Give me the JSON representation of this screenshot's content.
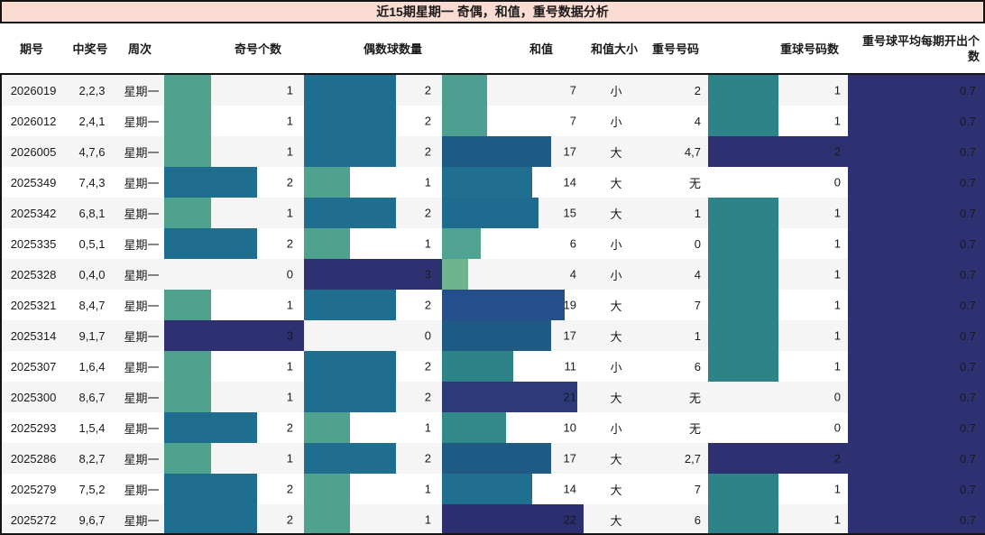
{
  "chart_data": {
    "type": "table",
    "title": "近15期星期一 奇偶，和值，重号数据分析",
    "title_bg": "#fbdcd3",
    "columns": [
      "期号",
      "中奖号",
      "周次",
      "奇号个数",
      "偶数球数量",
      "和值",
      "和值大小",
      "重号号码",
      "重球号码数",
      "重号球平均每期开出个数"
    ],
    "rows": [
      {
        "period": "2026019",
        "numbers": "2,2,3",
        "week": "星期一",
        "odd": 1,
        "even": 2,
        "sum": 7,
        "size": "小",
        "repeat": "2",
        "repeat_count": 1,
        "avg": "0.7"
      },
      {
        "period": "2026012",
        "numbers": "2,4,1",
        "week": "星期一",
        "odd": 1,
        "even": 2,
        "sum": 7,
        "size": "小",
        "repeat": "4",
        "repeat_count": 1,
        "avg": "0.7"
      },
      {
        "period": "2026005",
        "numbers": "4,7,6",
        "week": "星期一",
        "odd": 1,
        "even": 2,
        "sum": 17,
        "size": "大",
        "repeat": "4,7",
        "repeat_count": 2,
        "avg": "0.7"
      },
      {
        "period": "2025349",
        "numbers": "7,4,3",
        "week": "星期一",
        "odd": 2,
        "even": 1,
        "sum": 14,
        "size": "大",
        "repeat": "无",
        "repeat_count": 0,
        "avg": "0.7"
      },
      {
        "period": "2025342",
        "numbers": "6,8,1",
        "week": "星期一",
        "odd": 1,
        "even": 2,
        "sum": 15,
        "size": "大",
        "repeat": "1",
        "repeat_count": 1,
        "avg": "0.7"
      },
      {
        "period": "2025335",
        "numbers": "0,5,1",
        "week": "星期一",
        "odd": 2,
        "even": 1,
        "sum": 6,
        "size": "小",
        "repeat": "0",
        "repeat_count": 1,
        "avg": "0.7"
      },
      {
        "period": "2025328",
        "numbers": "0,4,0",
        "week": "星期一",
        "odd": 0,
        "even": 3,
        "sum": 4,
        "size": "小",
        "repeat": "4",
        "repeat_count": 1,
        "avg": "0.7"
      },
      {
        "period": "2025321",
        "numbers": "8,4,7",
        "week": "星期一",
        "odd": 1,
        "even": 2,
        "sum": 19,
        "size": "大",
        "repeat": "7",
        "repeat_count": 1,
        "avg": "0.7"
      },
      {
        "period": "2025314",
        "numbers": "9,1,7",
        "week": "星期一",
        "odd": 3,
        "even": 0,
        "sum": 17,
        "size": "大",
        "repeat": "1",
        "repeat_count": 1,
        "avg": "0.7"
      },
      {
        "period": "2025307",
        "numbers": "1,6,4",
        "week": "星期一",
        "odd": 1,
        "even": 2,
        "sum": 11,
        "size": "小",
        "repeat": "6",
        "repeat_count": 1,
        "avg": "0.7"
      },
      {
        "period": "2025300",
        "numbers": "8,6,7",
        "week": "星期一",
        "odd": 1,
        "even": 2,
        "sum": 21,
        "size": "大",
        "repeat": "无",
        "repeat_count": 0,
        "avg": "0.7"
      },
      {
        "period": "2025293",
        "numbers": "1,5,4",
        "week": "星期一",
        "odd": 2,
        "even": 1,
        "sum": 10,
        "size": "小",
        "repeat": "无",
        "repeat_count": 0,
        "avg": "0.7"
      },
      {
        "period": "2025286",
        "numbers": "8,2,7",
        "week": "星期一",
        "odd": 1,
        "even": 2,
        "sum": 17,
        "size": "大",
        "repeat": "2,7",
        "repeat_count": 2,
        "avg": "0.7"
      },
      {
        "period": "2025279",
        "numbers": "7,5,2",
        "week": "星期一",
        "odd": 2,
        "even": 1,
        "sum": 14,
        "size": "大",
        "repeat": "7",
        "repeat_count": 1,
        "avg": "0.7"
      },
      {
        "period": "2025272",
        "numbers": "9,6,7",
        "week": "星期一",
        "odd": 2,
        "even": 1,
        "sum": 22,
        "size": "大",
        "repeat": "6",
        "repeat_count": 1,
        "avg": "0.7"
      }
    ],
    "bar_scales": {
      "odd_max": 3,
      "even_max": 3,
      "sum_max": 22,
      "repeat_count_max": 2
    },
    "colors": {
      "count_1": "#4FA28E",
      "count_2": "#1F6E8F",
      "count_3": "#2D3171",
      "repeat_1": "#2E8389",
      "repeat_2": "#2D3171",
      "avg_fill": "#2D3171",
      "sum": {
        "4": "#6FB48E",
        "6": "#50A391",
        "7": "#4C9F91",
        "10": "#33898A",
        "11": "#2E8389",
        "14": "#216F90",
        "15": "#1F6A8F",
        "17": "#1F5A84",
        "19": "#254F8A",
        "21": "#2C3A79",
        "22": "#2B2F6F"
      },
      "stripe": "#f5f5f5",
      "border": "#141414"
    }
  }
}
